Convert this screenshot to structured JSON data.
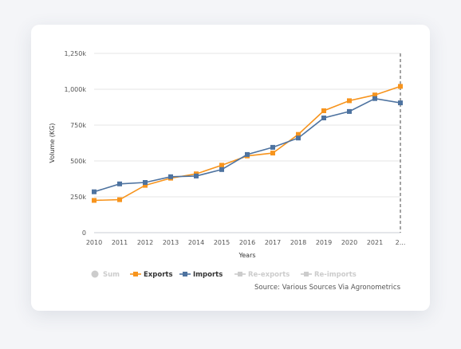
{
  "chart_data": {
    "type": "line",
    "title": "",
    "xlabel": "Years",
    "ylabel": "Volume (KG)",
    "categories": [
      "2010",
      "2011",
      "2012",
      "2013",
      "2014",
      "2015",
      "2016",
      "2017",
      "2018",
      "2019",
      "2020",
      "2021",
      "2..."
    ],
    "ylim": [
      0,
      1250000
    ],
    "yticks": [
      0,
      250000,
      500000,
      750000,
      1000000,
      1250000
    ],
    "ytick_labels": [
      "0",
      "250k",
      "500k",
      "750k",
      "1,000k",
      "1,250k"
    ],
    "series": [
      {
        "name": "Exports",
        "color": "#f7941d",
        "values": [
          225000,
          230000,
          330000,
          380000,
          410000,
          470000,
          535000,
          555000,
          685000,
          850000,
          920000,
          960000,
          1020000
        ]
      },
      {
        "name": "Imports",
        "color": "#4e73a0",
        "values": [
          285000,
          340000,
          350000,
          390000,
          395000,
          440000,
          545000,
          595000,
          660000,
          800000,
          845000,
          935000,
          905000
        ]
      }
    ],
    "grid": true,
    "legend_position": "bottom",
    "plot_band_marker": "dashed vertical line at last category"
  },
  "legend": [
    {
      "label": "Sum",
      "active": false,
      "color": "#cccccc",
      "marker": "circle"
    },
    {
      "label": "Exports",
      "active": true,
      "color": "#f7941d",
      "marker": "square"
    },
    {
      "label": "Imports",
      "active": true,
      "color": "#4e73a0",
      "marker": "square"
    },
    {
      "label": "Re-exports",
      "active": false,
      "color": "#cccccc",
      "marker": "square"
    },
    {
      "label": "Re-imports",
      "active": false,
      "color": "#cccccc",
      "marker": "square"
    }
  ],
  "source_text": "Source: Various Sources Via Agronometrics"
}
